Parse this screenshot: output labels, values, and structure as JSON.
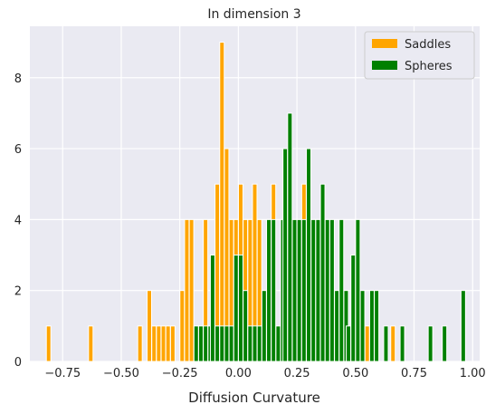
{
  "chart_data": {
    "type": "histogram",
    "title": "In dimension 3",
    "xlabel": "Diffusion Curvature",
    "ylabel": "",
    "xlim": [
      -0.89,
      1.03
    ],
    "ylim": [
      0,
      9.45
    ],
    "bin_width": 0.0192,
    "x_ticks": [
      -0.75,
      -0.5,
      -0.25,
      0.0,
      0.25,
      0.5,
      0.75,
      1.0
    ],
    "x_tick_labels": [
      "−0.75",
      "−0.50",
      "−0.25",
      "0.00",
      "0.25",
      "0.50",
      "0.75",
      "1.00"
    ],
    "y_ticks": [
      0,
      2,
      4,
      6,
      8
    ],
    "y_tick_labels": [
      "0",
      "2",
      "4",
      "6",
      "8"
    ],
    "grid": true,
    "background": "#eaeaf2",
    "legend_position": "top-right",
    "series": [
      {
        "name": "Saddles",
        "color": "#ffa500",
        "bins": [
          {
            "x": -0.81,
            "count": 1
          },
          {
            "x": -0.63,
            "count": 1
          },
          {
            "x": -0.42,
            "count": 1
          },
          {
            "x": -0.38,
            "count": 2
          },
          {
            "x": -0.36,
            "count": 1
          },
          {
            "x": -0.34,
            "count": 1
          },
          {
            "x": -0.32,
            "count": 1
          },
          {
            "x": -0.3,
            "count": 1
          },
          {
            "x": -0.28,
            "count": 1
          },
          {
            "x": -0.24,
            "count": 2
          },
          {
            "x": -0.22,
            "count": 4
          },
          {
            "x": -0.2,
            "count": 4
          },
          {
            "x": -0.18,
            "count": 1
          },
          {
            "x": -0.16,
            "count": 1
          },
          {
            "x": -0.14,
            "count": 4
          },
          {
            "x": -0.11,
            "count": 3
          },
          {
            "x": -0.09,
            "count": 5
          },
          {
            "x": -0.07,
            "count": 9
          },
          {
            "x": -0.05,
            "count": 6
          },
          {
            "x": -0.03,
            "count": 4
          },
          {
            "x": -0.01,
            "count": 4
          },
          {
            "x": 0.01,
            "count": 5
          },
          {
            "x": 0.03,
            "count": 4
          },
          {
            "x": 0.05,
            "count": 4
          },
          {
            "x": 0.07,
            "count": 5
          },
          {
            "x": 0.09,
            "count": 4
          },
          {
            "x": 0.13,
            "count": 4
          },
          {
            "x": 0.15,
            "count": 5
          },
          {
            "x": 0.22,
            "count": 6
          },
          {
            "x": 0.28,
            "count": 5
          },
          {
            "x": 0.3,
            "count": 4
          },
          {
            "x": 0.55,
            "count": 1
          },
          {
            "x": 0.66,
            "count": 1
          }
        ]
      },
      {
        "name": "Spheres",
        "color": "#008000",
        "bins": [
          {
            "x": -0.18,
            "count": 1
          },
          {
            "x": -0.16,
            "count": 1
          },
          {
            "x": -0.14,
            "count": 1
          },
          {
            "x": -0.12,
            "count": 1
          },
          {
            "x": -0.11,
            "count": 3
          },
          {
            "x": -0.09,
            "count": 1
          },
          {
            "x": -0.07,
            "count": 1
          },
          {
            "x": -0.05,
            "count": 1
          },
          {
            "x": -0.03,
            "count": 1
          },
          {
            "x": -0.01,
            "count": 3
          },
          {
            "x": 0.01,
            "count": 3
          },
          {
            "x": 0.03,
            "count": 2
          },
          {
            "x": 0.05,
            "count": 1
          },
          {
            "x": 0.07,
            "count": 1
          },
          {
            "x": 0.09,
            "count": 1
          },
          {
            "x": 0.11,
            "count": 2
          },
          {
            "x": 0.13,
            "count": 4
          },
          {
            "x": 0.15,
            "count": 4
          },
          {
            "x": 0.17,
            "count": 1
          },
          {
            "x": 0.19,
            "count": 4
          },
          {
            "x": 0.2,
            "count": 6
          },
          {
            "x": 0.22,
            "count": 7
          },
          {
            "x": 0.24,
            "count": 4
          },
          {
            "x": 0.26,
            "count": 4
          },
          {
            "x": 0.28,
            "count": 4
          },
          {
            "x": 0.3,
            "count": 6
          },
          {
            "x": 0.32,
            "count": 4
          },
          {
            "x": 0.34,
            "count": 4
          },
          {
            "x": 0.36,
            "count": 5
          },
          {
            "x": 0.38,
            "count": 4
          },
          {
            "x": 0.4,
            "count": 4
          },
          {
            "x": 0.42,
            "count": 2
          },
          {
            "x": 0.44,
            "count": 4
          },
          {
            "x": 0.46,
            "count": 2
          },
          {
            "x": 0.47,
            "count": 1
          },
          {
            "x": 0.49,
            "count": 3
          },
          {
            "x": 0.51,
            "count": 4
          },
          {
            "x": 0.53,
            "count": 2
          },
          {
            "x": 0.57,
            "count": 2
          },
          {
            "x": 0.59,
            "count": 2
          },
          {
            "x": 0.63,
            "count": 1
          },
          {
            "x": 0.7,
            "count": 1
          },
          {
            "x": 0.82,
            "count": 1
          },
          {
            "x": 0.88,
            "count": 1
          },
          {
            "x": 0.96,
            "count": 2
          }
        ]
      }
    ]
  }
}
